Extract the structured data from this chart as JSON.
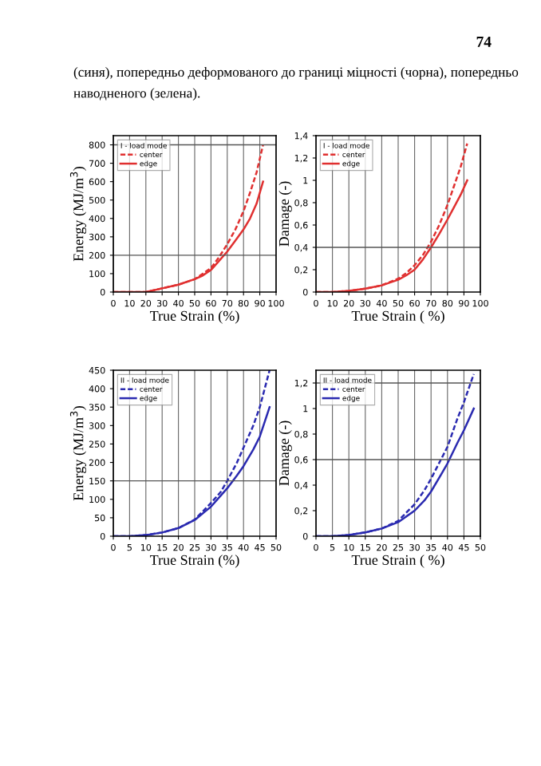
{
  "chart_data": [
    {
      "type": "line",
      "xlabel": "True Strain (%)",
      "ylabel": "Energy (MJ/m$^{3}$)",
      "legend_title": "I - load mode",
      "legend": "top left",
      "grid": "x",
      "xlim": [
        0,
        100
      ],
      "xticks": [
        0,
        10,
        20,
        30,
        40,
        50,
        60,
        70,
        80,
        90,
        100
      ],
      "ylim": [
        0,
        850
      ],
      "yticks": [
        0,
        100,
        200,
        300,
        400,
        500,
        600,
        700,
        800
      ],
      "ref_lines": [
        {
          "axis": "y",
          "value": 200,
          "color": "#555555"
        },
        {
          "axis": "y",
          "value": 800,
          "color": "#555555"
        }
      ],
      "annotations": [
        "74",
        "(синя), попередньо деформованого до границі міцності (чорна), попередньо наводненого (зелена)."
      ],
      "series": [
        {
          "name": "center",
          "color": "#e03030",
          "line_style": "dashed",
          "x": [
            0,
            10,
            20,
            30,
            40,
            50,
            55,
            60,
            65,
            70,
            75,
            80,
            84,
            88,
            92
          ],
          "values": [
            0,
            0,
            0,
            20,
            40,
            70,
            100,
            130,
            190,
            260,
            340,
            440,
            540,
            650,
            800
          ]
        },
        {
          "name": "edge",
          "color": "#e03030",
          "line_style": "solid",
          "x": [
            0,
            10,
            20,
            30,
            40,
            50,
            55,
            60,
            65,
            70,
            75,
            80,
            84,
            88,
            92
          ],
          "values": [
            0,
            0,
            0,
            20,
            40,
            70,
            90,
            120,
            170,
            220,
            280,
            340,
            400,
            480,
            600
          ]
        }
      ]
    },
    {
      "type": "line",
      "xlabel": "True Strain ( %)",
      "ylabel": "Damage (-)",
      "legend_title": "I - load mode",
      "legend": "top left",
      "grid": "x",
      "xlim": [
        0,
        100
      ],
      "xticks": [
        0,
        10,
        20,
        30,
        40,
        50,
        60,
        70,
        80,
        90,
        100
      ],
      "ylim": [
        0,
        1.4
      ],
      "yticks": [
        {
          "value": 0,
          "label": "0"
        },
        {
          "value": 0.2,
          "label": "0,2"
        },
        {
          "value": 0.4,
          "label": "0,4"
        },
        {
          "value": 0.6,
          "label": "0,6"
        },
        {
          "value": 0.8,
          "label": "0,8"
        },
        {
          "value": 1,
          "label": "1"
        },
        {
          "value": 1.2,
          "label": "1,2"
        },
        {
          "value": 1.4,
          "label": "1,4"
        }
      ],
      "ref_lines": [
        {
          "axis": "y",
          "value": 0.4,
          "color": "#555555"
        }
      ],
      "series": [
        {
          "name": "center",
          "color": "#e03030",
          "line_style": "dashed",
          "x": [
            0,
            10,
            20,
            30,
            40,
            50,
            55,
            60,
            65,
            70,
            75,
            80,
            84,
            88,
            92
          ],
          "values": [
            0,
            0,
            0.01,
            0.03,
            0.06,
            0.12,
            0.17,
            0.24,
            0.33,
            0.45,
            0.6,
            0.78,
            0.95,
            1.12,
            1.33
          ]
        },
        {
          "name": "edge",
          "color": "#e03030",
          "line_style": "solid",
          "x": [
            0,
            10,
            20,
            30,
            40,
            50,
            55,
            60,
            65,
            70,
            75,
            80,
            84,
            88,
            92
          ],
          "values": [
            0,
            0,
            0.01,
            0.03,
            0.06,
            0.11,
            0.15,
            0.2,
            0.29,
            0.4,
            0.52,
            0.65,
            0.76,
            0.87,
            1.0
          ]
        }
      ]
    },
    {
      "type": "line",
      "xlabel": "True Strain (%)",
      "ylabel": "Energy (MJ/m$^{3}$)",
      "legend_title": "II - load mode",
      "legend": "top left",
      "grid": "x",
      "xlim": [
        0,
        50
      ],
      "xticks": [
        0,
        5,
        10,
        15,
        20,
        25,
        30,
        35,
        40,
        45,
        50
      ],
      "ylim": [
        0,
        450
      ],
      "yticks": [
        0,
        50,
        100,
        150,
        200,
        250,
        300,
        350,
        400,
        450
      ],
      "ref_lines": [
        {
          "axis": "y",
          "value": 150,
          "color": "#555555"
        }
      ],
      "series": [
        {
          "name": "center",
          "color": "#2a2ab0",
          "line_style": "dashed",
          "x": [
            0,
            5,
            10,
            15,
            20,
            25,
            30,
            33,
            35,
            38,
            40,
            43,
            45,
            48
          ],
          "values": [
            0,
            0,
            3,
            10,
            22,
            45,
            90,
            120,
            150,
            200,
            240,
            300,
            350,
            450
          ]
        },
        {
          "name": "edge",
          "color": "#2a2ab0",
          "line_style": "solid",
          "x": [
            0,
            5,
            10,
            15,
            20,
            25,
            30,
            33,
            35,
            38,
            40,
            43,
            45,
            48
          ],
          "values": [
            0,
            0,
            3,
            10,
            22,
            44,
            80,
            110,
            130,
            165,
            190,
            235,
            270,
            350
          ]
        }
      ]
    },
    {
      "type": "line",
      "xlabel": "True Strain ( %)",
      "ylabel": "Damage (-)",
      "legend_title": "II - load mode",
      "legend": "top left",
      "grid": "x",
      "xlim": [
        0,
        50
      ],
      "xticks": [
        0,
        5,
        10,
        15,
        20,
        25,
        30,
        35,
        40,
        45,
        50
      ],
      "ylim": [
        0,
        1.3
      ],
      "yticks": [
        {
          "value": 0,
          "label": "0"
        },
        {
          "value": 0.2,
          "label": "0,2"
        },
        {
          "value": 0.4,
          "label": "0,4"
        },
        {
          "value": 0.6,
          "label": "0,6"
        },
        {
          "value": 0.8,
          "label": "0,8"
        },
        {
          "value": 1,
          "label": "1"
        },
        {
          "value": 1.2,
          "label": "1,2"
        }
      ],
      "ref_lines": [
        {
          "axis": "y",
          "value": 0.6,
          "color": "#555555"
        },
        {
          "axis": "y",
          "value": 1.2,
          "color": "#555555"
        }
      ],
      "series": [
        {
          "name": "center",
          "color": "#2a2ab0",
          "line_style": "dashed",
          "x": [
            0,
            5,
            10,
            15,
            20,
            25,
            30,
            33,
            35,
            38,
            40,
            43,
            45,
            48
          ],
          "values": [
            0,
            0,
            0.01,
            0.03,
            0.06,
            0.12,
            0.25,
            0.36,
            0.45,
            0.6,
            0.7,
            0.92,
            1.05,
            1.27
          ]
        },
        {
          "name": "edge",
          "color": "#2a2ab0",
          "line_style": "solid",
          "x": [
            0,
            5,
            10,
            15,
            20,
            25,
            30,
            33,
            35,
            38,
            40,
            43,
            45,
            48
          ],
          "values": [
            0,
            0,
            0.01,
            0.03,
            0.06,
            0.11,
            0.2,
            0.28,
            0.35,
            0.48,
            0.57,
            0.73,
            0.83,
            1.0
          ]
        }
      ]
    }
  ]
}
